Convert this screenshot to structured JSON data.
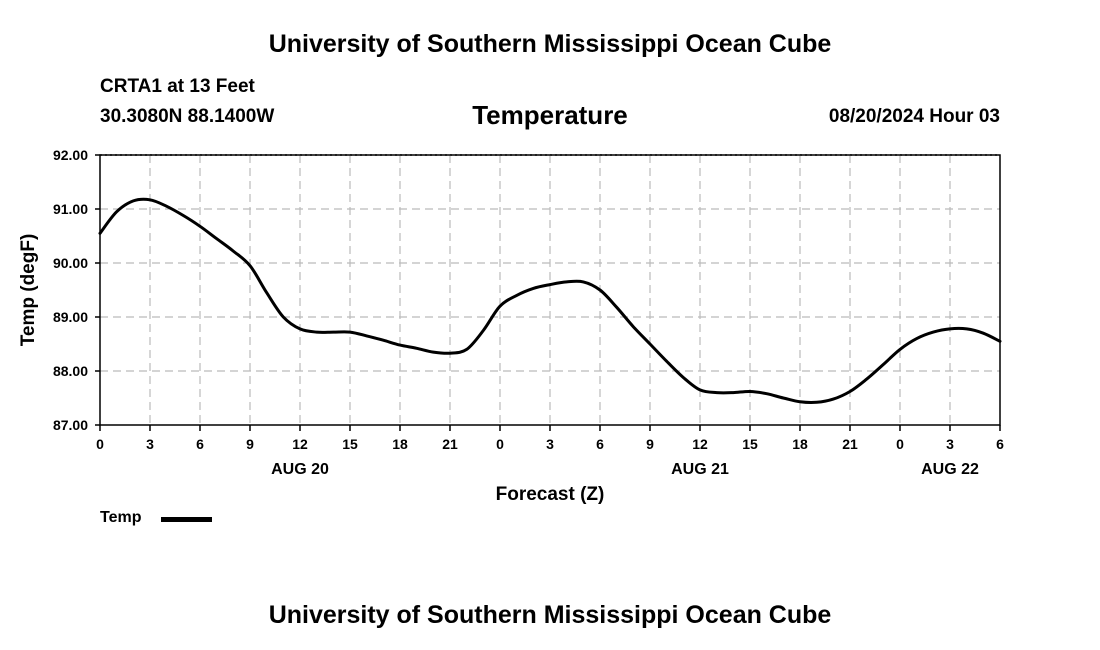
{
  "header": {
    "title_top": "University of Southern Mississippi Ocean Cube",
    "title_bottom": "University of Southern Mississippi Ocean Cube",
    "station": "CRTA1 at 13 Feet",
    "coords": "30.3080N  88.1400W",
    "datetime": "08/20/2024 Hour 03"
  },
  "chart_data": {
    "type": "line",
    "title": "Temperature",
    "xlabel": "Forecast (Z)",
    "ylabel": "Temp (degF)",
    "ylim": [
      87.0,
      92.0
    ],
    "xlim": [
      0,
      54
    ],
    "grid": true,
    "yticks": [
      "87.00",
      "88.00",
      "89.00",
      "90.00",
      "91.00",
      "92.00"
    ],
    "ytick_values": [
      87,
      88,
      89,
      90,
      91,
      92
    ],
    "xtick_labels": [
      "0",
      "3",
      "6",
      "9",
      "12",
      "15",
      "18",
      "21",
      "0",
      "3",
      "6",
      "9",
      "12",
      "15",
      "18",
      "21",
      "0",
      "3",
      "6"
    ],
    "xtick_hours": [
      0,
      3,
      6,
      9,
      12,
      15,
      18,
      21,
      24,
      27,
      30,
      33,
      36,
      39,
      42,
      45,
      48,
      51,
      54
    ],
    "day_labels": [
      {
        "label": "AUG 20",
        "hour": 12
      },
      {
        "label": "AUG 21",
        "hour": 36
      },
      {
        "label": "AUG 22",
        "hour": 51
      }
    ],
    "series": [
      {
        "name": "Temp",
        "color": "#000000",
        "x": [
          0,
          1,
          2,
          3,
          4,
          5,
          6,
          7,
          8,
          9,
          10,
          11,
          12,
          13,
          14,
          15,
          16,
          17,
          18,
          19,
          20,
          21,
          22,
          23,
          24,
          25,
          26,
          27,
          28,
          29,
          30,
          31,
          32,
          33,
          34,
          35,
          36,
          37,
          38,
          39,
          40,
          41,
          42,
          43,
          44,
          45,
          46,
          47,
          48,
          49,
          50,
          51,
          52,
          53,
          54
        ],
        "y": [
          90.55,
          90.95,
          91.15,
          91.17,
          91.05,
          90.88,
          90.68,
          90.45,
          90.22,
          89.95,
          89.45,
          89.0,
          88.78,
          88.72,
          88.72,
          88.72,
          88.65,
          88.57,
          88.48,
          88.42,
          88.35,
          88.33,
          88.4,
          88.75,
          89.2,
          89.4,
          89.53,
          89.6,
          89.65,
          89.65,
          89.5,
          89.18,
          88.82,
          88.5,
          88.18,
          87.88,
          87.65,
          87.6,
          87.6,
          87.62,
          87.58,
          87.5,
          87.43,
          87.42,
          87.48,
          87.62,
          87.85,
          88.12,
          88.4,
          88.6,
          88.72,
          88.78,
          88.78,
          88.7,
          88.55
        ]
      }
    ],
    "legend": {
      "label": "Temp"
    }
  }
}
